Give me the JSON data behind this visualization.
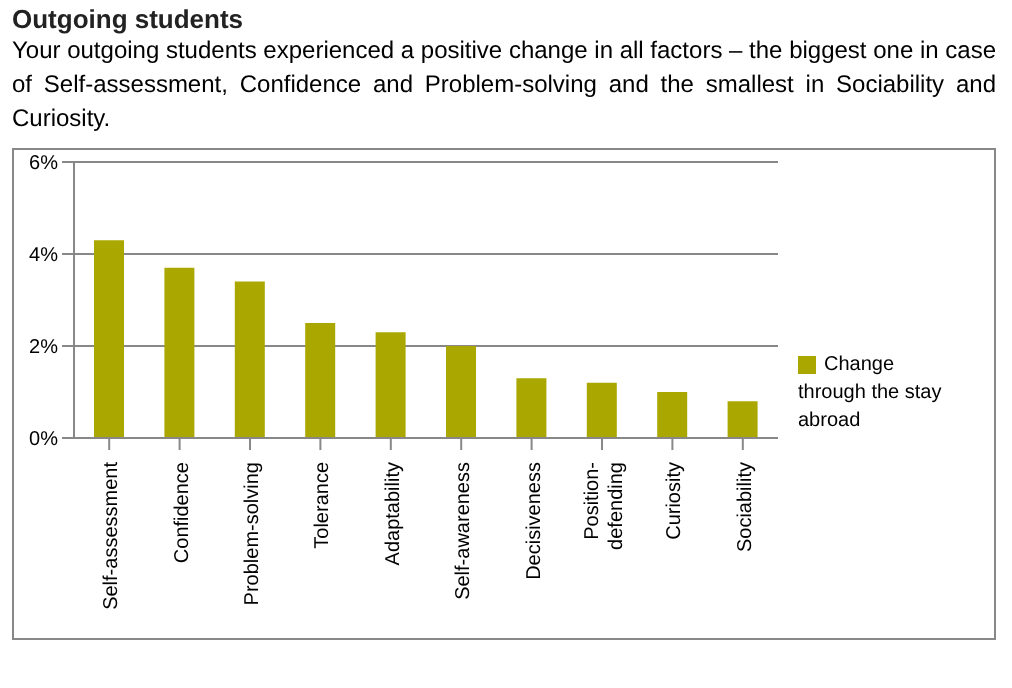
{
  "chart_data": {
    "type": "bar",
    "title": "Outgoing students",
    "subtitle": "Your outgoing students experienced a positive change in all factors – the biggest one in case of Self-assessment, Confidence and Problem-solving and the smallest in Sociability and Curiosity.",
    "categories": [
      "Self-assessment",
      "Confidence",
      "Problem-solving",
      "Tolerance",
      "Adaptability",
      "Self-awareness",
      "Decisiveness",
      "Position-defending",
      "Curiosity",
      "Sociability"
    ],
    "series": [
      {
        "name": "Change through the stay abroad",
        "color": "#aaa800",
        "values": [
          4.3,
          3.7,
          3.4,
          2.5,
          2.3,
          2.0,
          1.3,
          1.2,
          1.0,
          0.8
        ]
      }
    ],
    "ylim": [
      0,
      6
    ],
    "yticks": [
      {
        "value": 0,
        "label": "0%"
      },
      {
        "value": 2,
        "label": "2%"
      },
      {
        "value": 4,
        "label": "4%"
      },
      {
        "value": 6,
        "label": "6%"
      }
    ],
    "grid": "y",
    "legend": "right"
  }
}
